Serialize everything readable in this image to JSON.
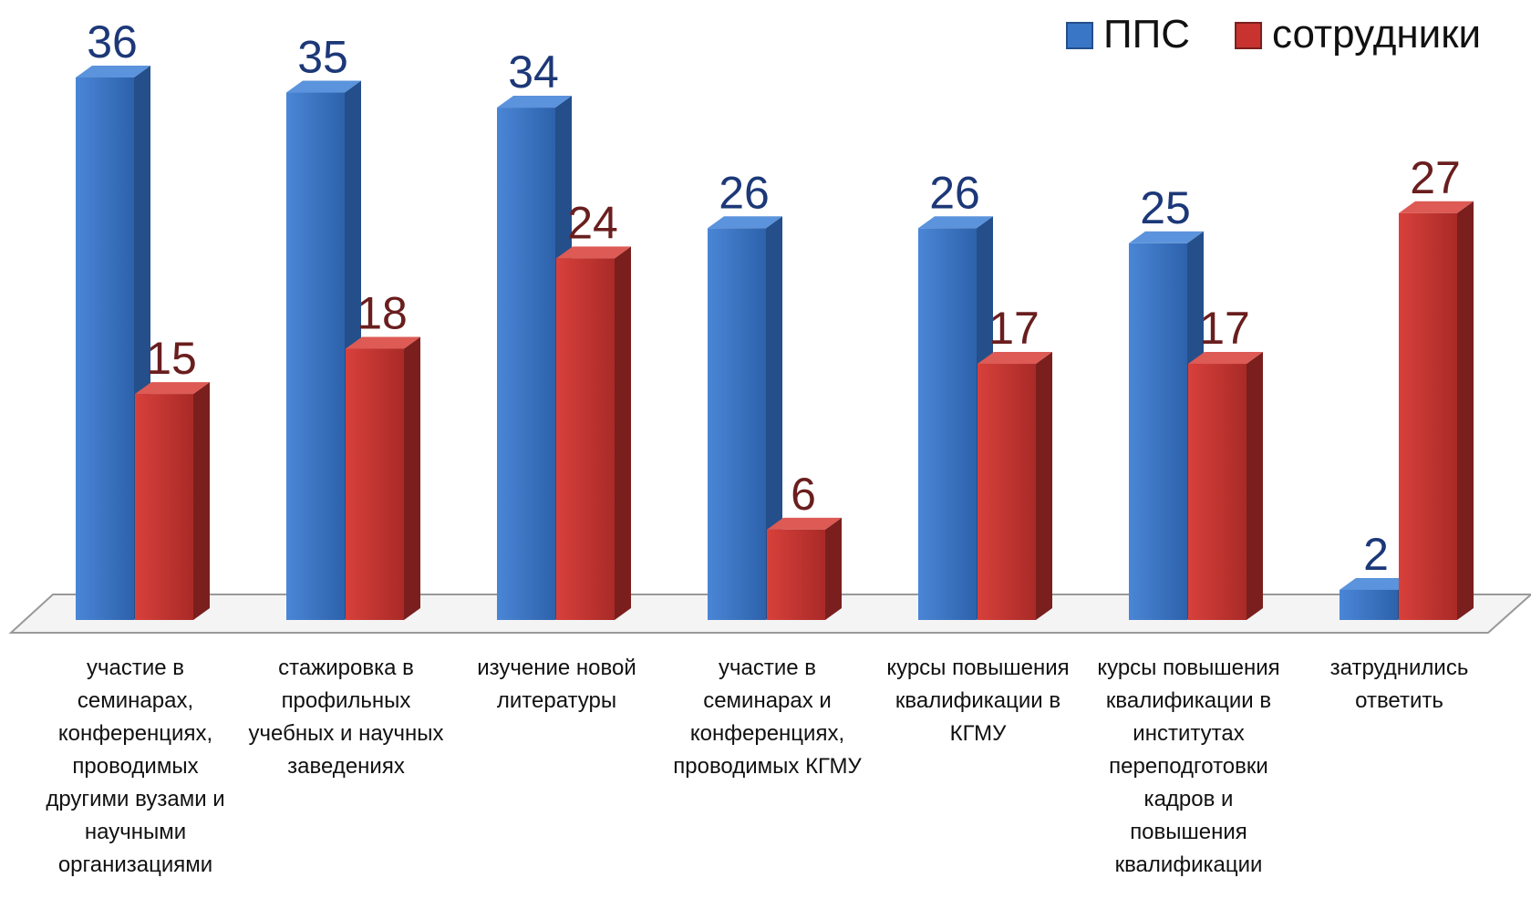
{
  "chart_data": {
    "type": "bar3d",
    "categories": [
      "участие в семинарах, конференциях, проводимых другими вузами и научными организациями",
      "стажировка в профильных учебных и научных заведениях",
      "изучение новой литературы",
      "участие в семинарах и конференциях, проводимых КГМУ",
      "курсы повышения квалификации в КГМУ",
      "курсы повышения квалификации в институтах переподготовки кадров и повышения квалификации",
      "затруднились ответить"
    ],
    "series": [
      {
        "name": "ППС",
        "color": "#3a76c6",
        "values": [
          36,
          35,
          34,
          26,
          26,
          25,
          2
        ]
      },
      {
        "name": "сотрудники",
        "color": "#c8332f",
        "values": [
          15,
          18,
          24,
          6,
          17,
          17,
          27
        ]
      }
    ],
    "legend": "top-right"
  }
}
